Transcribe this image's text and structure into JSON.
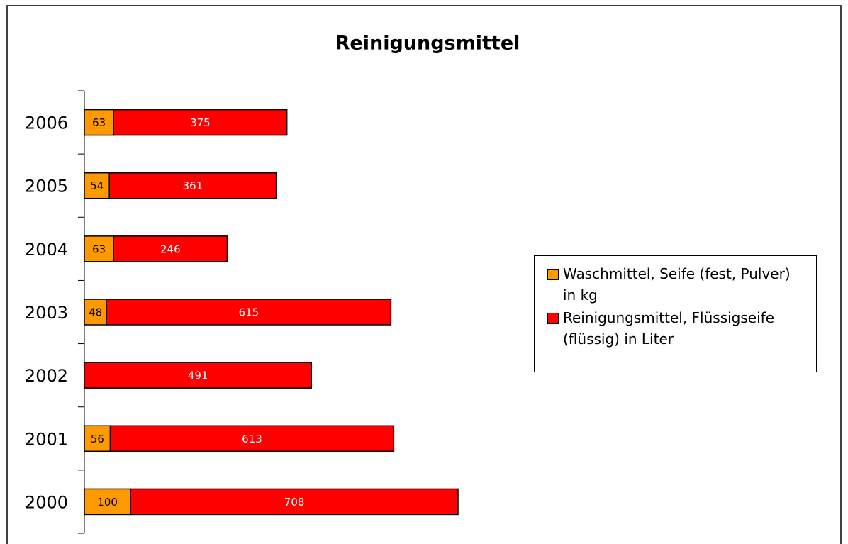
{
  "chart_data": {
    "type": "stacked-barh",
    "title": "Reinigungsmittel",
    "categories": [
      "2000",
      "2001",
      "2002",
      "2003",
      "2004",
      "2005",
      "2006"
    ],
    "series": [
      {
        "name": "Waschmittel, Seife (fest, Pulver) in kg",
        "color": "#FF9900",
        "values": [
          100,
          56,
          null,
          48,
          63,
          54,
          63
        ]
      },
      {
        "name": "Reinigungsmittel, Flüssigseife (flüssig) in Liter",
        "color": "#FF0000",
        "values": [
          708,
          613,
          491,
          615,
          246,
          361,
          375
        ]
      }
    ],
    "legend": "right"
  }
}
